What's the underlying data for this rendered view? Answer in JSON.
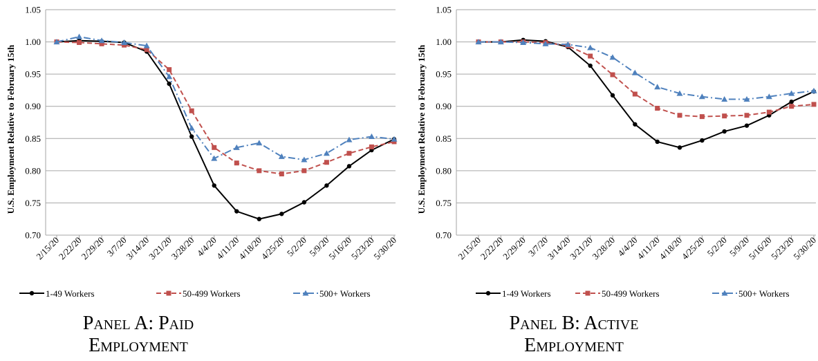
{
  "chart_data": [
    {
      "type": "line",
      "caption": "Panel A: Paid Employment",
      "y_label": "U.S. Employment Relative to February 15th",
      "categories": [
        "2/15/20",
        "2/22/20",
        "2/29/20",
        "3/7/20",
        "3/14/20",
        "3/21/20",
        "3/28/20",
        "4/4/20",
        "4/11/20",
        "4/18/20",
        "4/25/20",
        "5/2/20",
        "5/9/20",
        "5/16/20",
        "5/23/20",
        "5/30/20"
      ],
      "series": [
        {
          "name": "1-49 Workers",
          "color": "#000000",
          "values": [
            1.0,
            1.002,
            1.001,
            0.999,
            0.985,
            0.935,
            0.853,
            0.777,
            0.737,
            0.725,
            0.733,
            0.751,
            0.777,
            0.807,
            0.832,
            0.849
          ]
        },
        {
          "name": "50-499 Workers",
          "color": "#c0504d",
          "values": [
            1.0,
            0.999,
            0.997,
            0.995,
            0.988,
            0.957,
            0.893,
            0.836,
            0.812,
            0.8,
            0.795,
            0.8,
            0.813,
            0.827,
            0.837,
            0.845
          ]
        },
        {
          "name": "500+ Workers",
          "color": "#4f81bd",
          "values": [
            1.0,
            1.008,
            1.002,
            0.999,
            0.994,
            0.946,
            0.866,
            0.819,
            0.836,
            0.843,
            0.822,
            0.817,
            0.827,
            0.848,
            0.853,
            0.849
          ]
        }
      ],
      "ylim": [
        0.7,
        1.05
      ],
      "yticks": [
        {
          "value": 0.7,
          "label": "0.70"
        },
        0.75,
        {
          "value": 0.8,
          "label": "0.80"
        },
        0.85,
        {
          "value": 0.9,
          "label": "0.90"
        },
        0.95,
        {
          "value": 1.0,
          "label": "1.00"
        },
        1.05
      ],
      "grid": true,
      "legend": "bottom"
    },
    {
      "type": "line",
      "caption": "Panel B: Active Employment",
      "y_label": "U.S. Employment Relative to February 15th",
      "categories": [
        "2/15/20",
        "2/22/20",
        "2/29/20",
        "3/7/20",
        "3/14/20",
        "3/21/20",
        "3/28/20",
        "4/4/20",
        "4/11/20",
        "4/18/20",
        "4/25/20",
        "5/2/20",
        "5/9/20",
        "5/16/20",
        "5/23/20",
        "5/30/20"
      ],
      "series": [
        {
          "name": "1-49 Workers",
          "color": "#000000",
          "values": [
            1.0,
            1.0,
            1.003,
            1.001,
            0.992,
            0.963,
            0.917,
            0.872,
            0.845,
            0.836,
            0.847,
            0.861,
            0.87,
            0.886,
            0.907,
            0.923
          ]
        },
        {
          "name": "50-499 Workers",
          "color": "#c0504d",
          "values": [
            1.0,
            1.0,
            1.0,
            0.999,
            0.994,
            0.978,
            0.949,
            0.919,
            0.897,
            0.886,
            0.884,
            0.885,
            0.886,
            0.891,
            0.9,
            0.903
          ]
        },
        {
          "name": "500+ Workers",
          "color": "#4f81bd",
          "values": [
            1.0,
            1.0,
            0.999,
            0.997,
            0.996,
            0.991,
            0.976,
            0.952,
            0.93,
            0.92,
            0.915,
            0.911,
            0.911,
            0.915,
            0.92,
            0.924
          ]
        }
      ],
      "ylim": [
        0.7,
        1.05
      ],
      "yticks": [
        {
          "value": 0.7,
          "label": "0.70"
        },
        0.75,
        {
          "value": 0.8,
          "label": "0.80"
        },
        0.85,
        {
          "value": 0.9,
          "label": "0.90"
        },
        0.95,
        {
          "value": 1.0,
          "label": "1.00"
        },
        1.05
      ],
      "grid": true,
      "legend": "bottom"
    }
  ]
}
